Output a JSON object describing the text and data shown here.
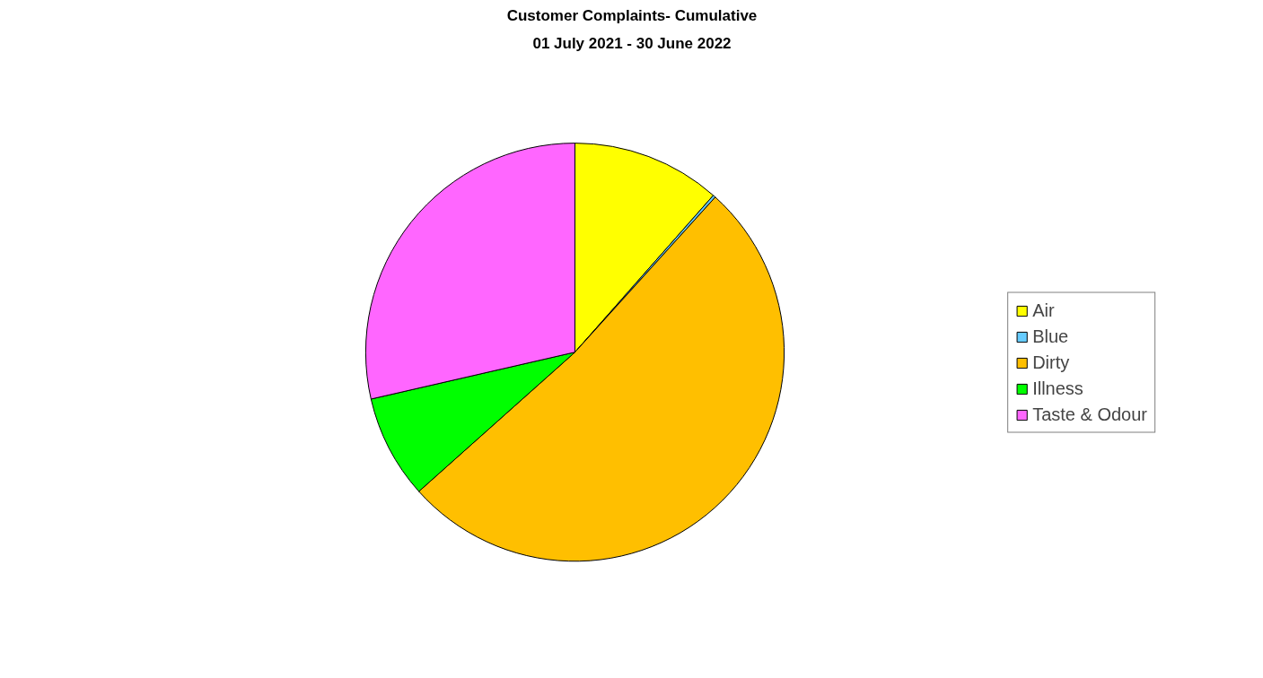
{
  "chart_data": {
    "type": "pie",
    "title": "Customer Complaints- Cumulative",
    "subtitle": "01 July 2021 - 30 June 2022",
    "categories": [
      "Air",
      "Blue",
      "Dirty",
      "Illness",
      "Taste & Odour"
    ],
    "values": [
      11.5,
      0.2,
      51.7,
      8.0,
      28.6
    ],
    "colors": [
      "#ffff00",
      "#66ccff",
      "#ffbf00",
      "#00ff00",
      "#ff66ff"
    ],
    "legend": "right"
  }
}
